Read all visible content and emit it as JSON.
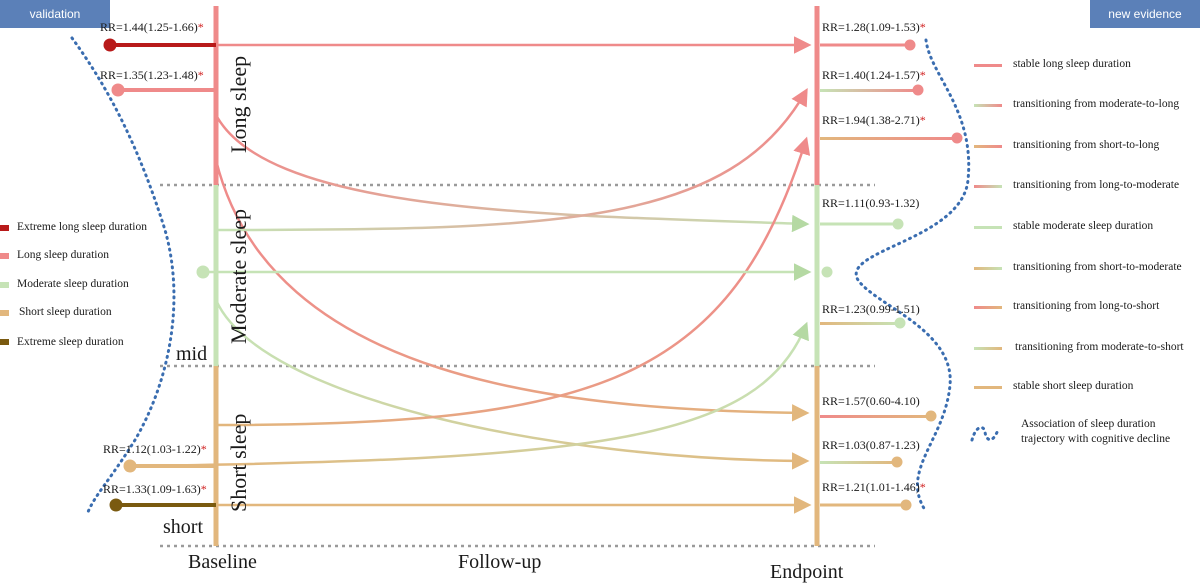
{
  "tabs": {
    "left": "validation",
    "right": "new evidence"
  },
  "band_labels": {
    "long": "Long sleep",
    "moderate": "Moderate sleep",
    "short": "Short sleep"
  },
  "markers": {
    "mid": "mid",
    "short": "short"
  },
  "axis_labels": {
    "baseline": "Baseline",
    "followup": "Follow-up",
    "endpoint": "Endpoint"
  },
  "baseline_rr": [
    {
      "text": "RR=1.44(1.25-1.66)",
      "sig": "*"
    },
    {
      "text": "RR=1.35(1.23-1.48)",
      "sig": "*"
    },
    {
      "text": "RR=1.12(1.03-1.22)",
      "sig": "*"
    },
    {
      "text": "RR=1.33(1.09-1.63)",
      "sig": "*"
    }
  ],
  "endpoint_rr": [
    {
      "text": "RR=1.28(1.09-1.53)",
      "sig": "*"
    },
    {
      "text": "RR=1.40(1.24-1.57)",
      "sig": "*"
    },
    {
      "text": "RR=1.94(1.38-2.71)",
      "sig": "*"
    },
    {
      "text": "RR=1.11(0.93-1.32)",
      "sig": ""
    },
    {
      "text": "RR=1.23(0.99-1.51)",
      "sig": ""
    },
    {
      "text": "RR=1.57(0.60-4.10)",
      "sig": ""
    },
    {
      "text": "RR=1.03(0.87-1.23)",
      "sig": ""
    },
    {
      "text": "RR=1.21(1.01-1.46)",
      "sig": "*"
    }
  ],
  "left_legend": [
    {
      "label": "Extreme long sleep duration",
      "color": "#b81a1a"
    },
    {
      "label": "Long sleep duration",
      "color": "#ef8a8a"
    },
    {
      "label": "Moderate sleep duration",
      "color": "#c6e3b6"
    },
    {
      "label": "Short sleep duration",
      "color": "#e2b77d"
    },
    {
      "label": "Extreme sleep duration",
      "color": "#7a5a10"
    }
  ],
  "right_legend": [
    {
      "label": "stable long sleep duration",
      "from": "#ef8a8a",
      "to": "#ef8a8a"
    },
    {
      "label": "transitioning from moderate-to-long",
      "from": "#c6e3b6",
      "to": "#ef8a8a"
    },
    {
      "label": "transitioning from short-to-long",
      "from": "#e2b77d",
      "to": "#ef8a8a"
    },
    {
      "label": "transitioning from long-to-moderate",
      "from": "#ef8a8a",
      "to": "#c6e3b6"
    },
    {
      "label": "stable moderate sleep duration",
      "from": "#c6e3b6",
      "to": "#c6e3b6"
    },
    {
      "label": "transitioning from short-to-moderate",
      "from": "#e2b77d",
      "to": "#c6e3b6"
    },
    {
      "label": "transitioning from long-to-short",
      "from": "#ef8a8a",
      "to": "#e2b77d"
    },
    {
      "label": "transitioning from moderate-to-short",
      "from": "#c6e3b6",
      "to": "#e2b77d"
    },
    {
      "label": "stable short sleep duration",
      "from": "#e2b77d",
      "to": "#e2b77d"
    }
  ],
  "dotted_legend": "Association of  sleep duration trajectory with cognitive decline",
  "colors": {
    "long": "#ef8a8a",
    "extreme_long": "#b81a1a",
    "moderate": "#c6e3b6",
    "short": "#e2b77d",
    "extreme_short": "#7a5a10",
    "dotted": "#3a6db0",
    "tab": "#5b80b8"
  }
}
